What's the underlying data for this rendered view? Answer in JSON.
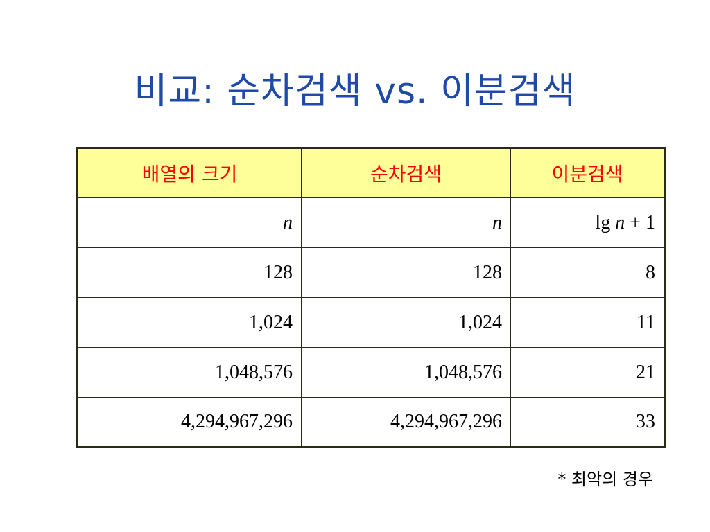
{
  "slide": {
    "title": "비교: 순차검색 vs. 이분검색"
  },
  "table": {
    "headers": [
      "배열의 크기",
      "순차검색",
      "이분검색"
    ],
    "formula_row": {
      "size": "n",
      "sequential": "n",
      "binary_prefix": "lg",
      "binary_var": "n",
      "binary_suffix": "+ 1"
    },
    "rows": [
      [
        "128",
        "128",
        "8"
      ],
      [
        "1,024",
        "1,024",
        "11"
      ],
      [
        "1,048,576",
        "1,048,576",
        "21"
      ],
      [
        "4,294,967,296",
        "4,294,967,296",
        "33"
      ]
    ]
  },
  "footnote": "* 최악의 경우",
  "colors": {
    "title": "#1f4aa8",
    "header_bg": "#ffff99",
    "header_text": "#ff0000",
    "border": "#2a2a18"
  }
}
